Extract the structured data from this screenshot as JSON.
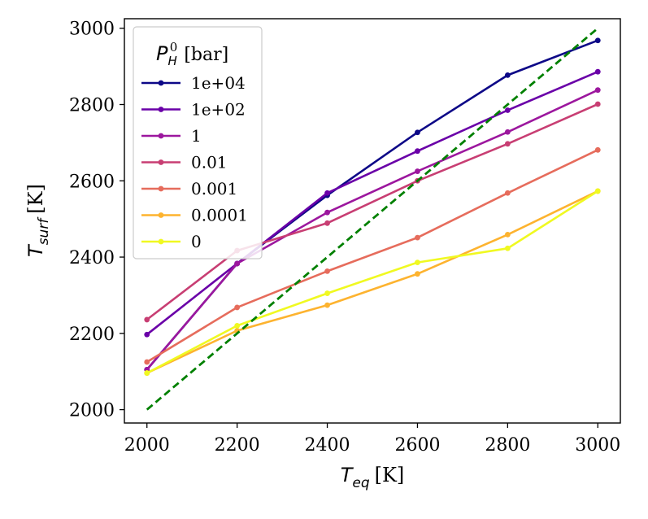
{
  "chart_data": {
    "type": "line",
    "x": [
      2000,
      2200,
      2400,
      2600,
      2800,
      3000
    ],
    "xlim": [
      1950,
      3050
    ],
    "ylim": [
      1965,
      3025
    ],
    "xticks": [
      2000,
      2200,
      2400,
      2600,
      2800,
      3000
    ],
    "yticks": [
      2000,
      2200,
      2400,
      2600,
      2800,
      3000
    ],
    "xlabel": {
      "symbol": "T",
      "subscript": "eq",
      "unit": "[K]"
    },
    "ylabel": {
      "symbol": "T",
      "subscript": "surf",
      "unit": "[K]"
    },
    "legend": {
      "title_symbol": "P",
      "title_subscript": "H",
      "title_superscript": "0",
      "title_unit": "[bar]",
      "placement": "top-left"
    },
    "series": [
      {
        "name": "1e+04",
        "color": "#0d0887",
        "values": [
          2105,
          2383,
          2562,
          2727,
          2877,
          2968
        ]
      },
      {
        "name": "1e+02",
        "color": "#6a00a8",
        "values": [
          2197,
          2383,
          2568,
          2678,
          2785,
          2886
        ]
      },
      {
        "name": "1",
        "color": "#9c179e",
        "values": [
          2105,
          2383,
          2517,
          2625,
          2728,
          2838
        ]
      },
      {
        "name": "0.01",
        "color": "#c83e73",
        "values": [
          2236,
          2417,
          2489,
          2600,
          2697,
          2801
        ]
      },
      {
        "name": "0.001",
        "color": "#e66c5c",
        "values": [
          2125,
          2268,
          2363,
          2451,
          2568,
          2681
        ]
      },
      {
        "name": "0.0001",
        "color": "#fdb32f",
        "values": [
          2096,
          2207,
          2274,
          2356,
          2459,
          2573
        ]
      },
      {
        "name": "0",
        "color": "#f0f921",
        "values": [
          2096,
          2220,
          2305,
          2386,
          2423,
          2573
        ]
      }
    ],
    "reference_line": {
      "name": "y = x",
      "color": "#008000",
      "style": "dashed",
      "x": [
        2000,
        3000
      ],
      "y": [
        2000,
        3000
      ]
    }
  }
}
